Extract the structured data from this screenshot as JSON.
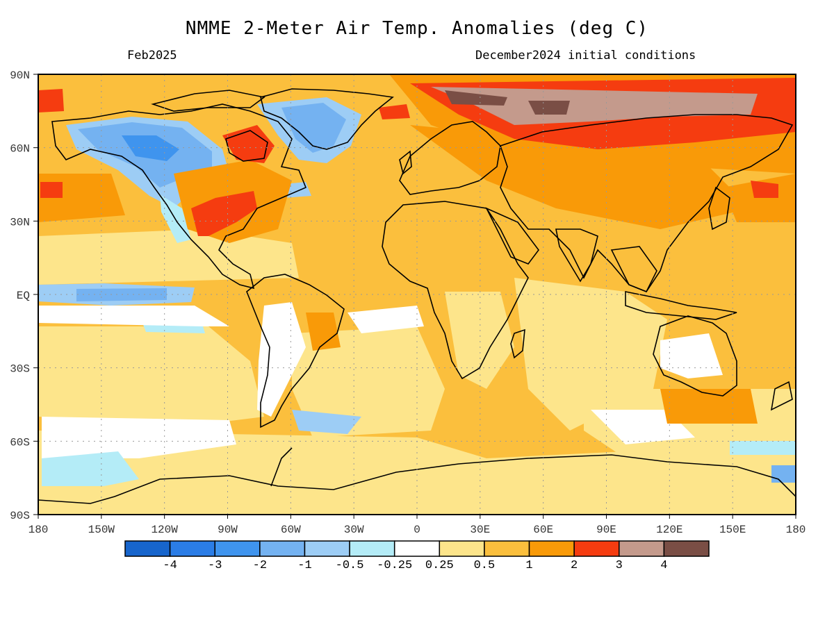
{
  "title": "NMME 2-Meter Air Temp. Anomalies (deg C)",
  "valid_month": "Feb2025",
  "init_label": "December2024 initial conditions",
  "lat_labels": [
    "90N",
    "60N",
    "30N",
    "EQ",
    "30S",
    "60S",
    "90S"
  ],
  "lon_labels": [
    "180",
    "150W",
    "120W",
    "90W",
    "60W",
    "30W",
    "0",
    "30E",
    "60E",
    "90E",
    "120E",
    "150E",
    "180"
  ],
  "colorbar": {
    "colors": [
      "#1765cc",
      "#2b7de6",
      "#3f94ee",
      "#74b2f1",
      "#9dcdf5",
      "#b4ecf7",
      "#ffffff",
      "#fde58b",
      "#fbbf3d",
      "#f99a08",
      "#f53c10",
      "#c49a8c",
      "#7a4e45"
    ],
    "tick_labels": [
      "-4",
      "-3",
      "-2",
      "-1",
      "-0.5",
      "-0.25",
      "0.25",
      "0.5",
      "1",
      "2",
      "3",
      "4"
    ]
  },
  "base_color": "#fbbf3d"
}
